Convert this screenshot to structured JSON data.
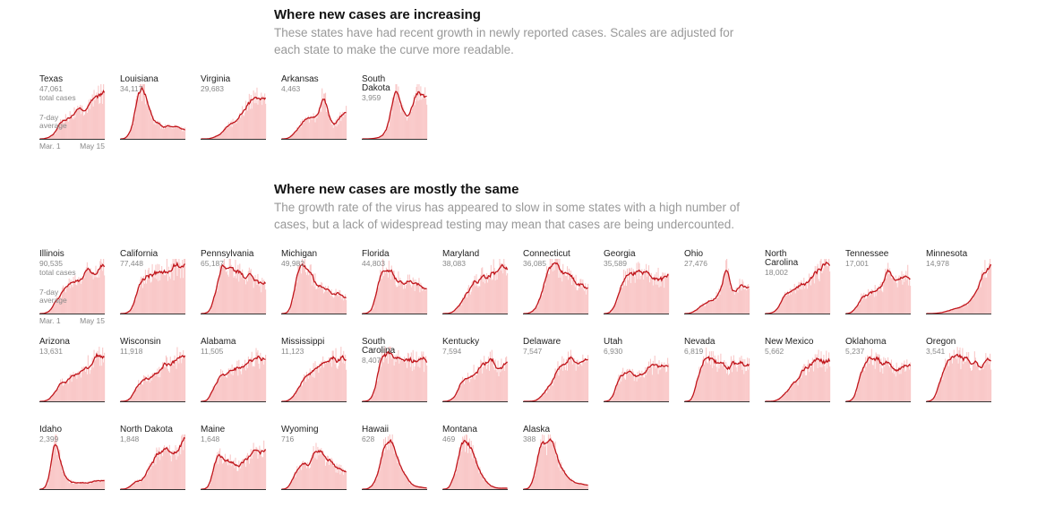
{
  "sections": [
    {
      "title": "Where new cases are increasing",
      "description": "These states have had recent growth in newly reported cases. Scales are adjusted for each state to make the curve more readable."
    },
    {
      "title": "Where new cases are mostly the same",
      "description": "The growth rate of the virus has appeared to slow in some states with a high number of cases, but a lack of widespread testing may mean that cases are being undercounted."
    }
  ],
  "labels": {
    "total_cases": "total cases",
    "seven_day_average": "7-day average",
    "x_start": "Mar. 1",
    "x_end": "May 15"
  },
  "colors": {
    "line": "#c0151b",
    "bars": "#f9c8c8",
    "axis": "#333333"
  },
  "chart_data": [
    {
      "type": "area",
      "section": "Where new cases are increasing",
      "y_axis": "hidden; scale adjusted per state",
      "x_range": [
        "Mar. 1",
        "May 15"
      ],
      "series": [
        {
          "name": "Texas",
          "total_cases": "47,061",
          "shape": [
            0,
            0,
            0.02,
            0.05,
            0.12,
            0.28,
            0.38,
            0.42,
            0.48,
            0.5,
            0.52,
            0.54,
            0.6,
            0.66,
            0.72,
            0.8,
            0.9,
            0.96
          ]
        },
        {
          "name": "Louisiana",
          "total_cases": "34,117",
          "shape": [
            0,
            0,
            0.05,
            0.25,
            0.6,
            0.9,
            1,
            0.75,
            0.45,
            0.32,
            0.28,
            0.26,
            0.24,
            0.22,
            0.22,
            0.21,
            0.2,
            0.2
          ]
        },
        {
          "name": "Virginia",
          "total_cases": "29,683",
          "shape": [
            0,
            0,
            0,
            0.02,
            0.05,
            0.1,
            0.18,
            0.25,
            0.3,
            0.35,
            0.42,
            0.52,
            0.62,
            0.72,
            0.8,
            0.85,
            0.9,
            0.92
          ]
        },
        {
          "name": "Arkansas",
          "total_cases": "4,463",
          "shape": [
            0,
            0,
            0.02,
            0.08,
            0.2,
            0.28,
            0.32,
            0.36,
            0.4,
            0.42,
            0.5,
            0.95,
            0.55,
            0.3,
            0.28,
            0.35,
            0.5,
            0.55
          ]
        },
        {
          "name": "South\nDakota",
          "total_cases": "3,959",
          "shape": [
            0,
            0,
            0,
            0.01,
            0.02,
            0.05,
            0.12,
            0.3,
            0.7,
            0.95,
            0.75,
            0.5,
            0.38,
            0.5,
            0.85,
            0.98,
            0.88,
            0.75
          ]
        }
      ]
    },
    {
      "type": "area",
      "section": "Where new cases are mostly the same",
      "y_axis": "hidden; scale adjusted per state",
      "x_range": [
        "Mar. 1",
        "May 15"
      ],
      "series": [
        {
          "name": "Illinois",
          "total_cases": "90,535",
          "shape": [
            0,
            0,
            0.02,
            0.08,
            0.2,
            0.35,
            0.45,
            0.52,
            0.58,
            0.62,
            0.66,
            0.72,
            0.8,
            0.86,
            0.9,
            0.94,
            0.96,
            0.95
          ]
        },
        {
          "name": "California",
          "total_cases": "77,448",
          "shape": [
            0,
            0,
            0.02,
            0.1,
            0.3,
            0.5,
            0.65,
            0.72,
            0.76,
            0.78,
            0.8,
            0.82,
            0.84,
            0.85,
            0.86,
            0.88,
            0.9,
            0.92
          ]
        },
        {
          "name": "Pennsylvania",
          "total_cases": "65,187",
          "shape": [
            0,
            0,
            0.03,
            0.15,
            0.45,
            0.8,
            0.98,
            0.95,
            0.9,
            0.85,
            0.8,
            0.78,
            0.74,
            0.7,
            0.65,
            0.6,
            0.55,
            0.5
          ]
        },
        {
          "name": "Michigan",
          "total_cases": "49,982",
          "shape": [
            0,
            0,
            0.05,
            0.3,
            0.7,
            0.95,
            1,
            0.85,
            0.7,
            0.6,
            0.52,
            0.48,
            0.45,
            0.42,
            0.38,
            0.36,
            0.34,
            0.3
          ]
        },
        {
          "name": "Florida",
          "total_cases": "44,803",
          "shape": [
            0,
            0,
            0.03,
            0.15,
            0.45,
            0.8,
            0.98,
            0.88,
            0.78,
            0.7,
            0.66,
            0.62,
            0.6,
            0.58,
            0.56,
            0.55,
            0.54,
            0.52
          ]
        },
        {
          "name": "Maryland",
          "total_cases": "38,083",
          "shape": [
            0,
            0,
            0.01,
            0.05,
            0.12,
            0.22,
            0.35,
            0.48,
            0.58,
            0.66,
            0.74,
            0.78,
            0.8,
            0.82,
            0.84,
            0.86,
            0.86,
            0.85
          ]
        },
        {
          "name": "Connecticut",
          "total_cases": "36,085",
          "shape": [
            0,
            0,
            0.02,
            0.08,
            0.22,
            0.45,
            0.7,
            0.92,
            0.96,
            0.9,
            0.82,
            0.75,
            0.7,
            0.62,
            0.58,
            0.55,
            0.5,
            0.48
          ]
        },
        {
          "name": "Georgia",
          "total_cases": "35,589",
          "shape": [
            0,
            0,
            0.05,
            0.2,
            0.45,
            0.65,
            0.72,
            0.75,
            0.78,
            0.82,
            0.8,
            0.78,
            0.75,
            0.72,
            0.7,
            0.68,
            0.66,
            0.65
          ]
        },
        {
          "name": "Ohio",
          "total_cases": "27,476",
          "shape": [
            0,
            0,
            0.02,
            0.06,
            0.12,
            0.18,
            0.22,
            0.26,
            0.3,
            0.4,
            0.5,
            0.95,
            0.55,
            0.45,
            0.5,
            0.55,
            0.52,
            0.5
          ]
        },
        {
          "name": "North\nCarolina",
          "total_cases": "18,002",
          "shape": [
            0,
            0,
            0.02,
            0.08,
            0.2,
            0.32,
            0.38,
            0.42,
            0.48,
            0.52,
            0.58,
            0.62,
            0.7,
            0.76,
            0.82,
            0.88,
            0.92,
            0.95
          ]
        },
        {
          "name": "Tennessee",
          "total_cases": "17,001",
          "shape": [
            0,
            0,
            0.05,
            0.15,
            0.3,
            0.35,
            0.38,
            0.4,
            0.45,
            0.5,
            0.55,
            0.9,
            0.62,
            0.58,
            0.65,
            0.7,
            0.75,
            0.72
          ]
        },
        {
          "name": "Minnesota",
          "total_cases": "14,978",
          "shape": [
            0,
            0,
            0,
            0.01,
            0.02,
            0.04,
            0.06,
            0.08,
            0.1,
            0.12,
            0.16,
            0.2,
            0.28,
            0.4,
            0.55,
            0.75,
            0.95,
            0.9
          ]
        },
        {
          "name": "Arizona",
          "total_cases": "13,631",
          "shape": [
            0,
            0,
            0.02,
            0.08,
            0.2,
            0.32,
            0.38,
            0.4,
            0.44,
            0.48,
            0.55,
            0.6,
            0.66,
            0.72,
            0.78,
            0.82,
            0.86,
            0.88
          ]
        },
        {
          "name": "Wisconsin",
          "total_cases": "11,918",
          "shape": [
            0,
            0,
            0.02,
            0.1,
            0.25,
            0.35,
            0.4,
            0.42,
            0.45,
            0.5,
            0.55,
            0.62,
            0.7,
            0.76,
            0.82,
            0.88,
            0.9,
            0.92
          ]
        },
        {
          "name": "Alabama",
          "total_cases": "11,505",
          "shape": [
            0,
            0,
            0.05,
            0.2,
            0.38,
            0.48,
            0.52,
            0.55,
            0.58,
            0.62,
            0.66,
            0.7,
            0.74,
            0.78,
            0.8,
            0.82,
            0.84,
            0.85
          ]
        },
        {
          "name": "Mississippi",
          "total_cases": "11,123",
          "shape": [
            0,
            0,
            0.02,
            0.1,
            0.22,
            0.35,
            0.45,
            0.52,
            0.58,
            0.65,
            0.7,
            0.74,
            0.78,
            0.82,
            0.84,
            0.86,
            0.85,
            0.84
          ]
        },
        {
          "name": "South\nCarolina",
          "total_cases": "8,407",
          "shape": [
            0,
            0,
            0.03,
            0.15,
            0.5,
            0.85,
            0.95,
            0.92,
            0.88,
            0.85,
            0.84,
            0.82,
            0.8,
            0.78,
            0.78,
            0.76,
            0.76,
            0.75
          ]
        },
        {
          "name": "Kentucky",
          "total_cases": "7,594",
          "shape": [
            0,
            0,
            0.02,
            0.08,
            0.2,
            0.35,
            0.45,
            0.5,
            0.55,
            0.6,
            0.65,
            0.7,
            0.72,
            0.8,
            0.7,
            0.65,
            0.7,
            0.72
          ]
        },
        {
          "name": "Delaware",
          "total_cases": "7,547",
          "shape": [
            0,
            0,
            0,
            0.01,
            0.05,
            0.12,
            0.2,
            0.3,
            0.45,
            0.6,
            0.7,
            0.75,
            0.8,
            0.85,
            0.7,
            0.8,
            0.75,
            0.72
          ]
        },
        {
          "name": "Utah",
          "total_cases": "6,930",
          "shape": [
            0,
            0,
            0.05,
            0.25,
            0.45,
            0.52,
            0.55,
            0.5,
            0.48,
            0.5,
            0.55,
            0.62,
            0.68,
            0.7,
            0.72,
            0.72,
            0.7,
            0.7
          ]
        },
        {
          "name": "Nevada",
          "total_cases": "6,819",
          "shape": [
            0,
            0,
            0.05,
            0.3,
            0.6,
            0.8,
            0.85,
            0.82,
            0.78,
            0.75,
            0.72,
            0.7,
            0.68,
            0.72,
            0.74,
            0.7,
            0.68,
            0.66
          ]
        },
        {
          "name": "New Mexico",
          "total_cases": "5,662",
          "shape": [
            0,
            0,
            0,
            0.02,
            0.05,
            0.12,
            0.2,
            0.28,
            0.35,
            0.45,
            0.55,
            0.65,
            0.75,
            0.8,
            0.82,
            0.8,
            0.78,
            0.76
          ]
        },
        {
          "name": "Oklahoma",
          "total_cases": "5,237",
          "shape": [
            0,
            0,
            0.05,
            0.25,
            0.55,
            0.75,
            0.85,
            0.82,
            0.78,
            0.72,
            0.7,
            0.68,
            0.66,
            0.64,
            0.66,
            0.7,
            0.68,
            0.66
          ]
        },
        {
          "name": "Oregon",
          "total_cases": "3,541",
          "shape": [
            0,
            0,
            0.05,
            0.2,
            0.45,
            0.7,
            0.82,
            0.85,
            0.84,
            0.82,
            0.8,
            0.78,
            0.78,
            0.8,
            0.82,
            0.85,
            0.8,
            0.76
          ]
        },
        {
          "name": "Idaho",
          "total_cases": "2,399",
          "shape": [
            0,
            0,
            0.1,
            0.5,
            0.95,
            0.7,
            0.35,
            0.2,
            0.15,
            0.14,
            0.13,
            0.12,
            0.12,
            0.13,
            0.14,
            0.15,
            0.16,
            0.17
          ]
        },
        {
          "name": "North Dakota",
          "total_cases": "1,848",
          "shape": [
            0,
            0,
            0.02,
            0.08,
            0.15,
            0.18,
            0.2,
            0.3,
            0.45,
            0.6,
            0.68,
            0.72,
            0.75,
            0.72,
            0.7,
            0.8,
            0.85,
            0.9
          ]
        },
        {
          "name": "Maine",
          "total_cases": "1,648",
          "shape": [
            0,
            0,
            0.05,
            0.3,
            0.55,
            0.62,
            0.65,
            0.6,
            0.55,
            0.5,
            0.45,
            0.52,
            0.6,
            0.68,
            0.72,
            0.78,
            0.82,
            0.84
          ]
        },
        {
          "name": "Wyoming",
          "total_cases": "716",
          "shape": [
            0,
            0,
            0.05,
            0.2,
            0.35,
            0.42,
            0.45,
            0.5,
            0.6,
            0.75,
            0.72,
            0.65,
            0.55,
            0.5,
            0.45,
            0.4,
            0.35,
            0.3
          ]
        },
        {
          "name": "Hawaii",
          "total_cases": "628",
          "shape": [
            0,
            0,
            0.02,
            0.1,
            0.3,
            0.6,
            0.85,
            0.95,
            0.85,
            0.65,
            0.45,
            0.3,
            0.18,
            0.1,
            0.06,
            0.04,
            0.03,
            0.02
          ]
        },
        {
          "name": "Montana",
          "total_cases": "469",
          "shape": [
            0,
            0,
            0.05,
            0.25,
            0.6,
            0.9,
            0.98,
            0.88,
            0.7,
            0.5,
            0.32,
            0.18,
            0.1,
            0.05,
            0.03,
            0.02,
            0.02,
            0.02
          ]
        },
        {
          "name": "Alaska",
          "total_cases": "388",
          "shape": [
            0,
            0,
            0.05,
            0.3,
            0.75,
            0.9,
            0.78,
            0.9,
            0.8,
            0.6,
            0.42,
            0.3,
            0.22,
            0.15,
            0.12,
            0.1,
            0.08,
            0.07
          ]
        }
      ]
    }
  ]
}
